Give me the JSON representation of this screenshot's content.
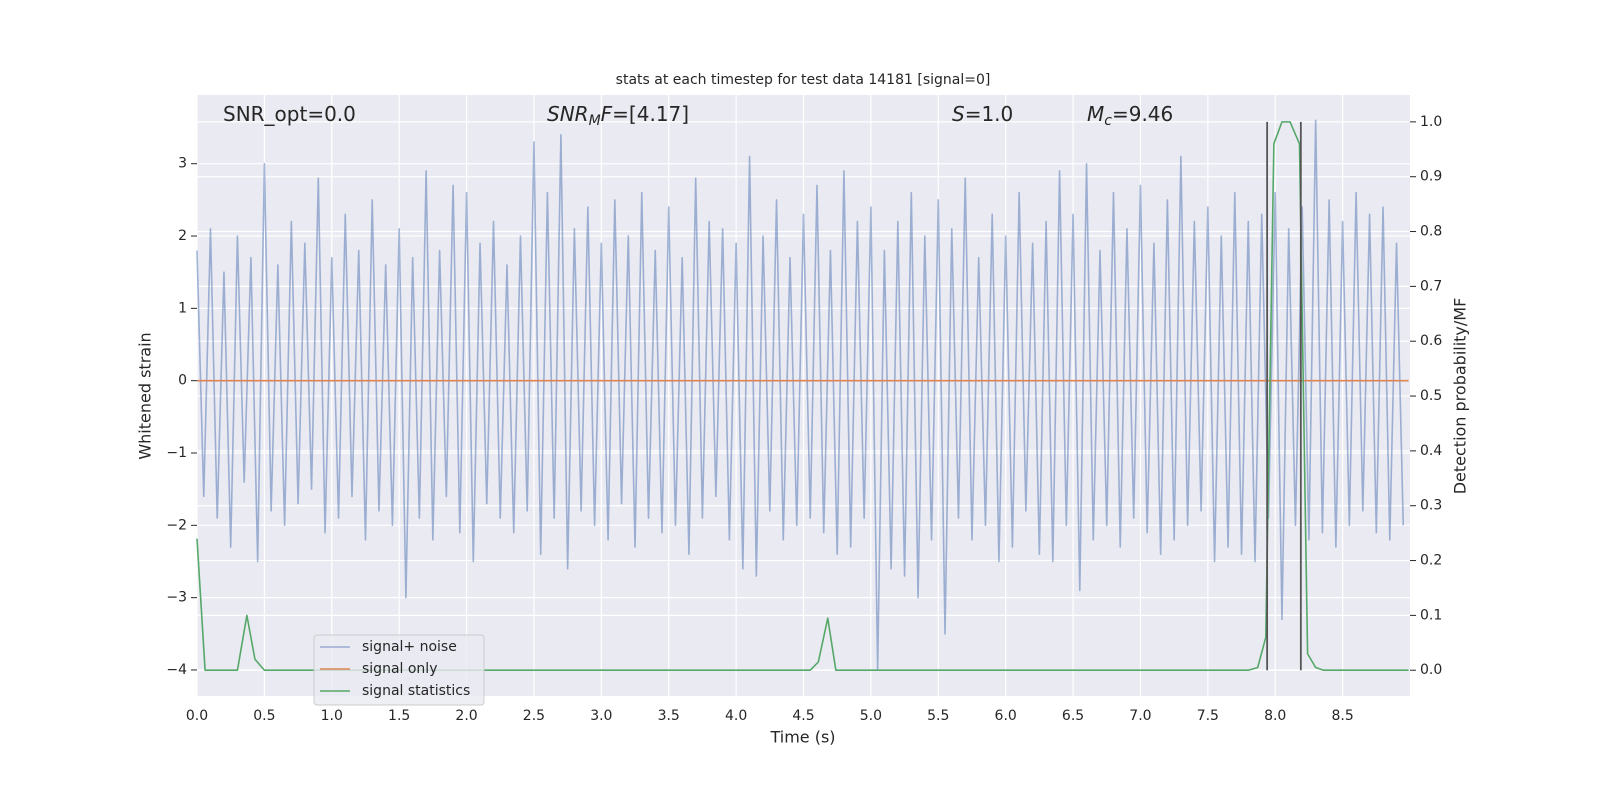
{
  "chart_data": {
    "type": "line",
    "title": "stats at each timestep for test data 14181 [signal=0]",
    "xlabel": "Time (s)",
    "ylabel": "Whitened strain",
    "y2label": "Detection probability/MF",
    "grid": true,
    "legend": "lower left",
    "xlim": [
      0,
      9.0
    ],
    "ylim": [
      -4.36,
      3.95
    ],
    "y2lim": [
      -0.047,
      1.049
    ],
    "xticks": [
      {
        "value": 0,
        "label": "0.0"
      },
      0.5,
      {
        "value": 1,
        "label": "1.0"
      },
      1.5,
      {
        "value": 2,
        "label": "2.0"
      },
      2.5,
      {
        "value": 3,
        "label": "3.0"
      },
      3.5,
      {
        "value": 4,
        "label": "4.0"
      },
      4.5,
      {
        "value": 5,
        "label": "5.0"
      },
      5.5,
      {
        "value": 6,
        "label": "6.0"
      },
      6.5,
      {
        "value": 7,
        "label": "7.0"
      },
      7.5,
      {
        "value": 8,
        "label": "8.0"
      },
      8.5
    ],
    "yticks": [
      {
        "value": -4,
        "label": "−4"
      },
      {
        "value": -3,
        "label": "−3"
      },
      {
        "value": -2,
        "label": "−2"
      },
      {
        "value": -1,
        "label": "−1"
      },
      0,
      1,
      2,
      3
    ],
    "y2ticks": [
      {
        "value": 0,
        "label": "0.0"
      },
      0.1,
      0.2,
      0.3,
      0.4,
      0.5,
      0.6,
      0.7,
      0.8,
      0.9,
      {
        "value": 1,
        "label": "1.0"
      }
    ],
    "annotations": [
      [
        {
          "text": "SNR_opt=0.0"
        }
      ],
      [
        {
          "text": "SNR",
          "style": "italic"
        },
        {
          "text": "M",
          "style": "sub"
        },
        {
          "text": "F",
          "style": "italic"
        },
        {
          "text": "=[4.17]"
        }
      ],
      [
        {
          "text": "S",
          "style": "italic"
        },
        {
          "text": "=1.0"
        }
      ],
      [
        {
          "text": "M",
          "style": "italic"
        },
        {
          "text": "c",
          "style": "sub"
        },
        {
          "text": "=9.46"
        }
      ]
    ],
    "vlines": {
      "color": "#555555",
      "x": [
        7.94,
        8.19
      ],
      "y2": [
        0,
        1.0
      ]
    },
    "series": [
      {
        "name": "signal+ noise",
        "color": "#4c72b0",
        "opacity": 0.5,
        "x": [
          0,
          0.05,
          0.1,
          0.15,
          0.2,
          0.25,
          0.3,
          0.35,
          0.4,
          0.45,
          0.5,
          0.55,
          0.6,
          0.65,
          0.7,
          0.75,
          0.8,
          0.85,
          0.9,
          0.95,
          1,
          1.05,
          1.1,
          1.15,
          1.2,
          1.25,
          1.3,
          1.35,
          1.4,
          1.45,
          1.5,
          1.55,
          1.6,
          1.65,
          1.7,
          1.75,
          1.8,
          1.85,
          1.9,
          1.95,
          2,
          2.05,
          2.1,
          2.15,
          2.2,
          2.25,
          2.3,
          2.35,
          2.4,
          2.45,
          2.5,
          2.55,
          2.6,
          2.65,
          2.7,
          2.75,
          2.8,
          2.85,
          2.9,
          2.95,
          3,
          3.05,
          3.1,
          3.15,
          3.2,
          3.25,
          3.3,
          3.35,
          3.4,
          3.45,
          3.5,
          3.55,
          3.6,
          3.65,
          3.7,
          3.75,
          3.8,
          3.85,
          3.9,
          3.95,
          4,
          4.05,
          4.1,
          4.15,
          4.2,
          4.25,
          4.3,
          4.35,
          4.4,
          4.45,
          4.5,
          4.55,
          4.6,
          4.65,
          4.7,
          4.75,
          4.8,
          4.85,
          4.9,
          4.95,
          5,
          5.05,
          5.1,
          5.15,
          5.2,
          5.25,
          5.3,
          5.35,
          5.4,
          5.45,
          5.5,
          5.55,
          5.6,
          5.65,
          5.7,
          5.75,
          5.8,
          5.85,
          5.9,
          5.95,
          6,
          6.05,
          6.1,
          6.15,
          6.2,
          6.25,
          6.3,
          6.35,
          6.4,
          6.45,
          6.5,
          6.55,
          6.6,
          6.65,
          6.7,
          6.75,
          6.8,
          6.85,
          6.9,
          6.95,
          7,
          7.05,
          7.1,
          7.15,
          7.2,
          7.25,
          7.3,
          7.35,
          7.4,
          7.45,
          7.5,
          7.55,
          7.6,
          7.65,
          7.7,
          7.75,
          7.8,
          7.85,
          7.9,
          7.95,
          8,
          8.05,
          8.1,
          8.15,
          8.2,
          8.25,
          8.3,
          8.35,
          8.4,
          8.45,
          8.5,
          8.55,
          8.6,
          8.65,
          8.7,
          8.75,
          8.8,
          8.85,
          8.9,
          8.95
        ],
        "values": [
          1.8,
          -1.6,
          2.1,
          -1.9,
          1.5,
          -2.3,
          2.0,
          -1.4,
          1.7,
          -2.5,
          3.0,
          -1.8,
          1.6,
          -2.0,
          2.2,
          -1.7,
          1.9,
          -1.5,
          2.8,
          -2.1,
          1.7,
          -1.9,
          2.3,
          -1.6,
          1.8,
          -2.2,
          2.5,
          -1.8,
          1.6,
          -2.0,
          2.1,
          -3.0,
          1.7,
          -1.9,
          2.9,
          -2.2,
          1.8,
          -1.6,
          2.7,
          -2.1,
          2.6,
          -2.5,
          1.9,
          -1.7,
          2.2,
          -1.9,
          1.6,
          -2.1,
          2.0,
          -1.8,
          3.3,
          -2.4,
          2.6,
          -1.9,
          3.4,
          -2.6,
          2.1,
          -1.8,
          2.4,
          -2.0,
          1.9,
          -2.2,
          2.5,
          -1.7,
          2.0,
          -2.3,
          2.6,
          -1.9,
          1.8,
          -2.1,
          2.4,
          -2.0,
          1.7,
          -2.4,
          2.8,
          -1.9,
          2.2,
          -1.6,
          2.1,
          -2.2,
          1.9,
          -2.6,
          3.1,
          -2.7,
          2.0,
          -1.8,
          2.5,
          -2.2,
          1.7,
          -2.0,
          2.3,
          -1.9,
          2.7,
          -2.1,
          1.8,
          -2.4,
          2.9,
          -2.3,
          2.2,
          -1.9,
          2.4,
          -4.0,
          1.8,
          -2.6,
          2.2,
          -2.7,
          2.6,
          -3.0,
          2.0,
          -2.2,
          2.5,
          -3.5,
          2.1,
          -1.9,
          2.8,
          -2.2,
          1.7,
          -2.0,
          2.3,
          -2.5,
          2.0,
          -2.3,
          2.6,
          -1.8,
          1.9,
          -2.4,
          2.2,
          -2.5,
          2.9,
          -2.0,
          2.3,
          -2.9,
          3.0,
          -2.2,
          1.8,
          -2.0,
          2.6,
          -2.3,
          2.1,
          -1.9,
          2.7,
          -2.1,
          1.9,
          -2.4,
          2.5,
          -2.2,
          3.1,
          -2.0,
          2.2,
          -1.8,
          2.4,
          -2.5,
          2.0,
          -2.3,
          2.6,
          -2.4,
          2.2,
          -2.5,
          2.3,
          -1.9,
          2.6,
          -3.3,
          2.1,
          -2.0,
          2.4,
          -2.2,
          3.6,
          -2.1,
          2.5,
          -2.3,
          2.2,
          -2.0,
          2.6,
          -1.8,
          2.3,
          -2.1,
          2.4,
          -2.2,
          1.9,
          -2.0
        ]
      },
      {
        "name": "signal only",
        "color": "#dd8452",
        "x": [
          0,
          8.99
        ],
        "values": [
          0,
          0
        ]
      },
      {
        "name": "signal statistics",
        "color": "#55a868",
        "axis": "y2",
        "x": [
          0,
          0.06,
          0.12,
          0.3,
          0.37,
          0.43,
          0.5,
          4.55,
          4.61,
          4.68,
          4.74,
          7.8,
          7.87,
          7.93,
          7.99,
          8.05,
          8.11,
          8.18,
          8.24,
          8.3,
          8.36,
          8.99
        ],
        "values": [
          0.24,
          0,
          0,
          0,
          0.1,
          0.02,
          0,
          0,
          0.015,
          0.095,
          0,
          0,
          0.005,
          0.06,
          0.96,
          1.0,
          1.0,
          0.96,
          0.03,
          0.005,
          0,
          0
        ]
      }
    ]
  }
}
